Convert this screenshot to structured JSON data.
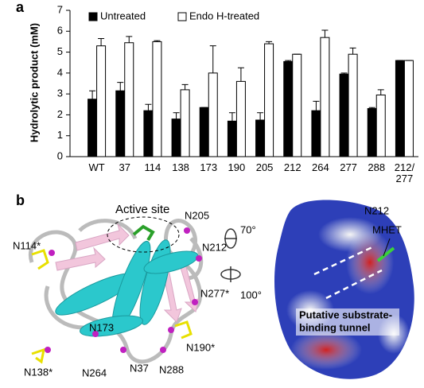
{
  "panel_labels": [
    "a",
    "b"
  ],
  "chart_data": {
    "type": "bar",
    "y_label": "Hydrolytic product (mM)",
    "categories": [
      "WT",
      "37",
      "114",
      "138",
      "173",
      "190",
      "205",
      "212",
      "264",
      "277",
      "288",
      "212/\n277"
    ],
    "series": [
      {
        "name": "Untreated",
        "color": "#000000",
        "values": [
          2.75,
          3.15,
          2.2,
          1.8,
          2.35,
          1.7,
          1.75,
          4.55,
          2.2,
          3.95,
          2.3,
          4.6
        ],
        "errors": [
          0.4,
          0.4,
          0.3,
          0.3,
          0,
          0.4,
          0.35,
          0.05,
          0.45,
          0.05,
          0.05,
          0
        ]
      },
      {
        "name": "Endo H-treated",
        "color": "#ffffff",
        "values": [
          5.3,
          5.45,
          5.5,
          3.2,
          4.0,
          3.6,
          5.4,
          4.9,
          5.7,
          4.9,
          2.95,
          4.6
        ],
        "errors": [
          0.35,
          0.3,
          0.05,
          0.25,
          1.3,
          0.65,
          0.1,
          0,
          0.35,
          0.3,
          0.25,
          0
        ]
      }
    ],
    "ylim": [
      0,
      7
    ],
    "yticks": [
      0,
      1,
      2,
      3,
      4,
      5,
      6,
      7
    ],
    "legend": "top-left"
  },
  "structure": {
    "title": "Active site",
    "residues": [
      "N205",
      "N212",
      "N114*",
      "N277*",
      "N173",
      "N190*",
      "N138*",
      "N264",
      "N37",
      "N288"
    ],
    "rotations": [
      "70°",
      "100°"
    ]
  },
  "surface": {
    "labels": [
      "N212",
      "MHET"
    ],
    "tunnel": [
      "Putative substrate-",
      "binding tunnel"
    ]
  }
}
